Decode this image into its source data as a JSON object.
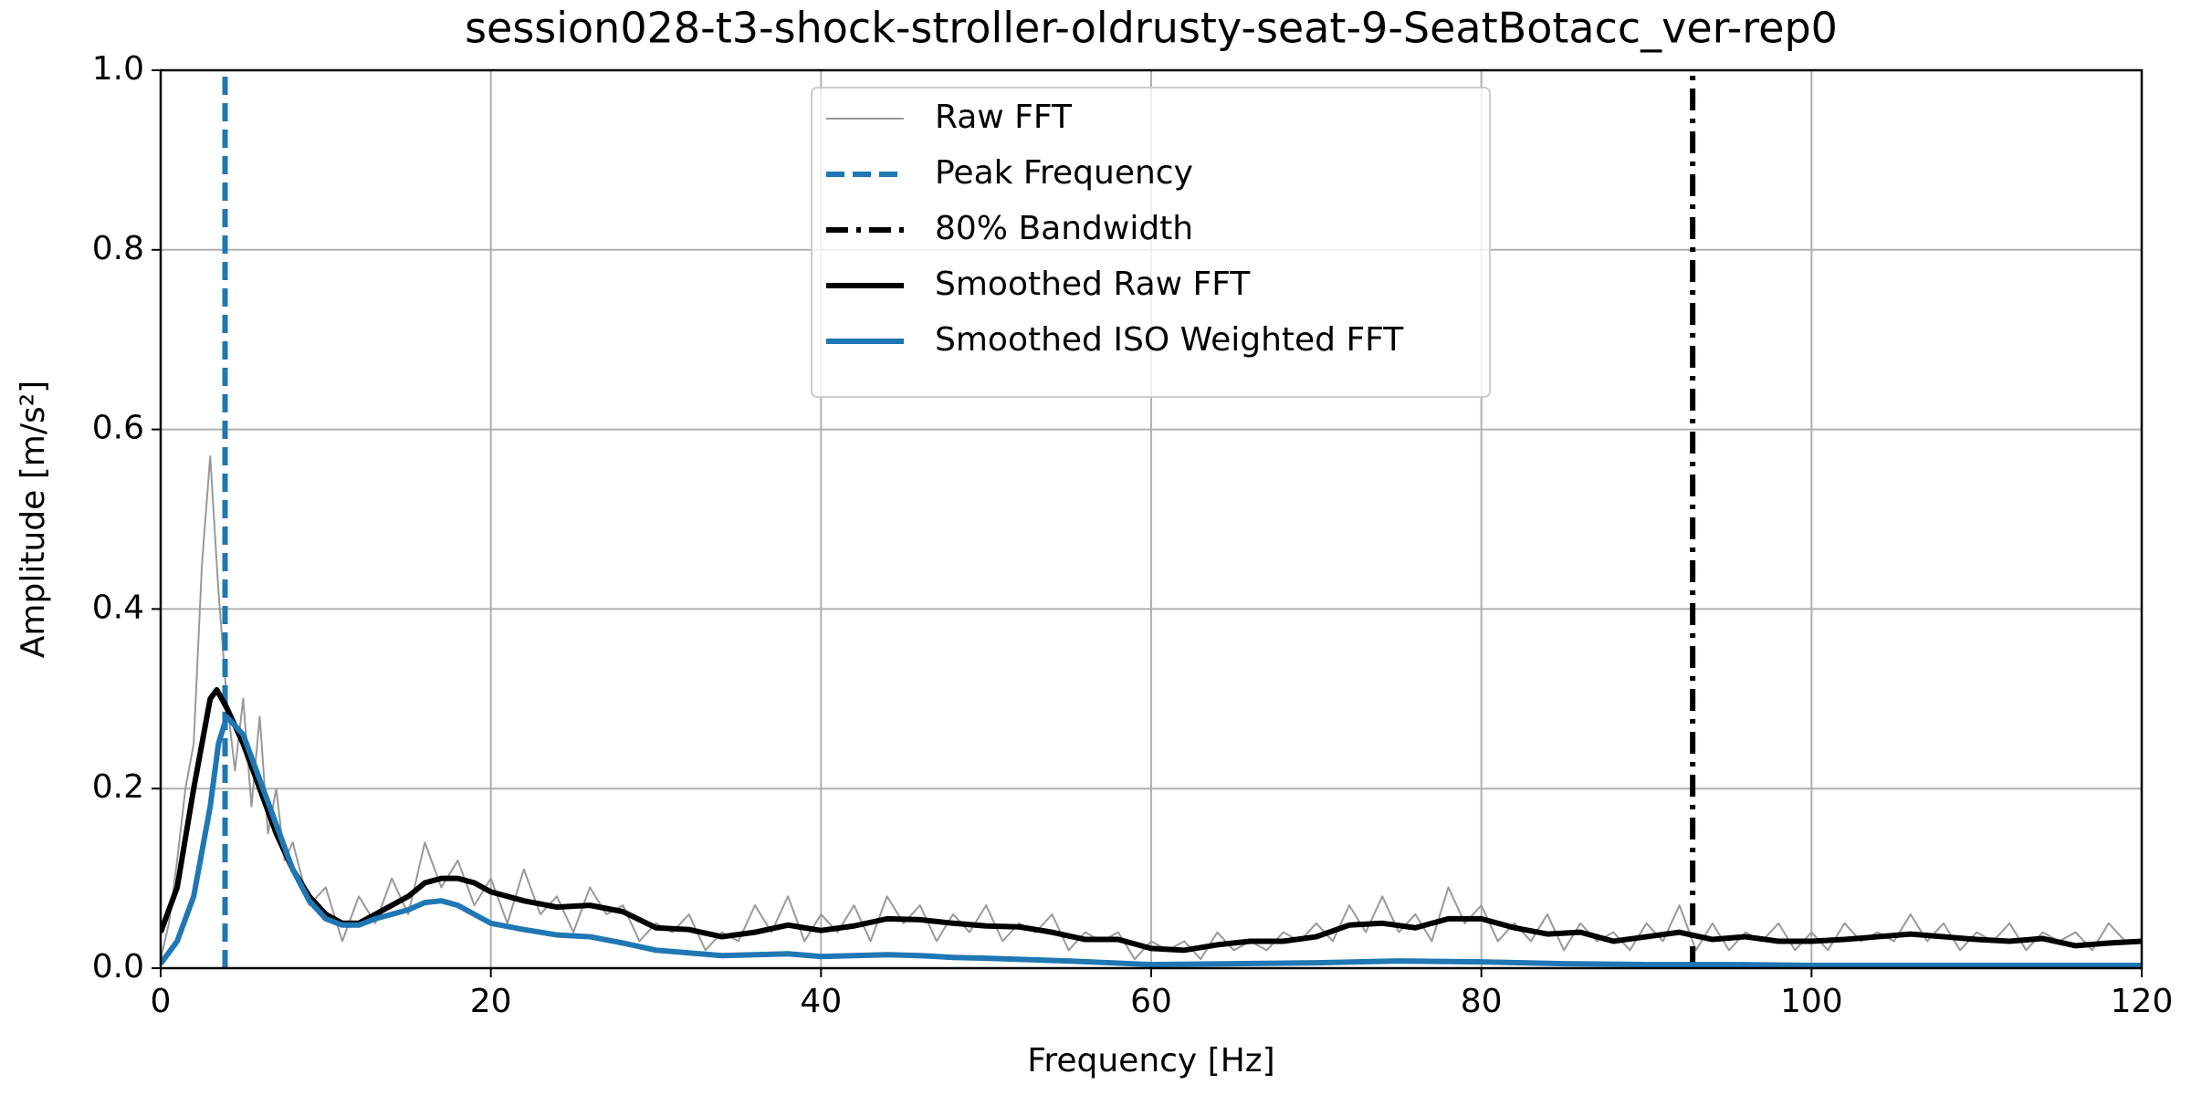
{
  "chart_data": {
    "type": "line",
    "title": "session028-t3-shock-stroller-oldrusty-seat-9-SeatBotacc_ver-rep0",
    "xlabel": "Frequency [Hz]",
    "ylabel": "Amplitude [m/s²]",
    "xlim": [
      0,
      120
    ],
    "xticks": [
      0,
      20,
      40,
      60,
      80,
      100,
      120
    ],
    "ylim": [
      0,
      1
    ],
    "yticks": [
      {
        "value": 0,
        "label": "0.0"
      },
      0.2,
      0.4,
      0.6,
      0.8,
      {
        "value": 1,
        "label": "1.0"
      }
    ],
    "grid": true,
    "legend": "upper center",
    "series": [
      {
        "name": "Raw FFT",
        "kind": "line",
        "color": "#999999",
        "width": 1,
        "x": [
          0,
          0.5,
          1,
          1.5,
          2,
          2.5,
          3,
          3.5,
          4,
          4.5,
          5,
          5.5,
          6,
          6.5,
          7,
          7.5,
          8,
          9,
          10,
          11,
          12,
          13,
          14,
          15,
          16,
          17,
          18,
          19,
          20,
          21,
          22,
          23,
          24,
          25,
          26,
          27,
          28,
          29,
          30,
          31,
          32,
          33,
          34,
          35,
          36,
          37,
          38,
          39,
          40,
          41,
          42,
          43,
          44,
          45,
          46,
          47,
          48,
          49,
          50,
          51,
          52,
          53,
          54,
          55,
          56,
          57,
          58,
          59,
          60,
          61,
          62,
          63,
          64,
          65,
          66,
          67,
          68,
          69,
          70,
          71,
          72,
          73,
          74,
          75,
          76,
          77,
          78,
          79,
          80,
          81,
          82,
          83,
          84,
          85,
          86,
          87,
          88,
          89,
          90,
          91,
          92,
          93,
          94,
          95,
          96,
          97,
          98,
          99,
          100,
          101,
          102,
          103,
          104,
          105,
          106,
          107,
          108,
          109,
          110,
          111,
          112,
          113,
          114,
          115,
          116,
          117,
          118,
          119,
          120
        ],
        "values": [
          0.01,
          0.05,
          0.12,
          0.2,
          0.25,
          0.45,
          0.57,
          0.42,
          0.3,
          0.22,
          0.3,
          0.18,
          0.28,
          0.15,
          0.2,
          0.12,
          0.14,
          0.07,
          0.09,
          0.03,
          0.08,
          0.05,
          0.1,
          0.06,
          0.14,
          0.09,
          0.12,
          0.07,
          0.1,
          0.05,
          0.11,
          0.06,
          0.08,
          0.04,
          0.09,
          0.06,
          0.07,
          0.03,
          0.05,
          0.04,
          0.06,
          0.02,
          0.04,
          0.03,
          0.07,
          0.04,
          0.08,
          0.03,
          0.06,
          0.04,
          0.07,
          0.03,
          0.08,
          0.05,
          0.07,
          0.03,
          0.06,
          0.04,
          0.07,
          0.03,
          0.05,
          0.04,
          0.06,
          0.02,
          0.04,
          0.03,
          0.04,
          0.01,
          0.03,
          0.02,
          0.03,
          0.01,
          0.04,
          0.02,
          0.03,
          0.02,
          0.04,
          0.03,
          0.05,
          0.03,
          0.07,
          0.04,
          0.08,
          0.04,
          0.06,
          0.03,
          0.09,
          0.05,
          0.07,
          0.03,
          0.05,
          0.03,
          0.06,
          0.02,
          0.05,
          0.03,
          0.04,
          0.02,
          0.05,
          0.03,
          0.07,
          0.02,
          0.05,
          0.02,
          0.04,
          0.03,
          0.05,
          0.02,
          0.04,
          0.02,
          0.05,
          0.03,
          0.04,
          0.03,
          0.06,
          0.03,
          0.05,
          0.02,
          0.04,
          0.03,
          0.05,
          0.02,
          0.04,
          0.03,
          0.04,
          0.02,
          0.05,
          0.03,
          0.03
        ]
      },
      {
        "name": "Peak Frequency",
        "kind": "vline",
        "color": "#1f77b4",
        "dash": "dashed",
        "width": 3,
        "x": 3.9
      },
      {
        "name": "80% Bandwidth",
        "kind": "vline",
        "color": "#000000",
        "dash": "dashdot",
        "width": 3,
        "x": 92.8
      },
      {
        "name": "Smoothed Raw FFT",
        "kind": "line",
        "color": "#000000",
        "width": 3,
        "x": [
          0,
          1,
          2,
          3,
          3.4,
          4,
          5,
          6,
          7,
          8,
          9,
          10,
          11,
          12,
          13,
          14,
          15,
          16,
          17,
          18,
          19,
          20,
          22,
          24,
          26,
          28,
          30,
          32,
          34,
          36,
          38,
          40,
          42,
          44,
          46,
          48,
          50,
          52,
          54,
          56,
          58,
          60,
          62,
          64,
          66,
          68,
          70,
          72,
          74,
          76,
          78,
          80,
          82,
          84,
          86,
          88,
          90,
          92,
          94,
          96,
          98,
          100,
          102,
          104,
          106,
          108,
          110,
          112,
          114,
          116,
          118,
          120
        ],
        "values": [
          0.04,
          0.09,
          0.2,
          0.3,
          0.31,
          0.29,
          0.25,
          0.2,
          0.15,
          0.11,
          0.08,
          0.06,
          0.05,
          0.05,
          0.06,
          0.07,
          0.08,
          0.095,
          0.1,
          0.1,
          0.095,
          0.085,
          0.075,
          0.068,
          0.07,
          0.063,
          0.045,
          0.043,
          0.035,
          0.04,
          0.048,
          0.042,
          0.047,
          0.055,
          0.054,
          0.05,
          0.047,
          0.046,
          0.04,
          0.032,
          0.032,
          0.022,
          0.02,
          0.026,
          0.03,
          0.03,
          0.035,
          0.048,
          0.05,
          0.045,
          0.055,
          0.055,
          0.045,
          0.038,
          0.04,
          0.03,
          0.035,
          0.04,
          0.032,
          0.035,
          0.03,
          0.03,
          0.032,
          0.035,
          0.038,
          0.035,
          0.032,
          0.03,
          0.033,
          0.025,
          0.028,
          0.03
        ]
      },
      {
        "name": "Smoothed ISO Weighted FFT",
        "kind": "line",
        "color": "#1f77b4",
        "width": 3,
        "x": [
          0,
          1,
          2,
          3,
          3.5,
          4,
          5,
          6,
          7,
          8,
          9,
          10,
          11,
          12,
          13,
          14,
          15,
          16,
          17,
          18,
          19,
          20,
          22,
          24,
          26,
          28,
          30,
          32,
          34,
          36,
          38,
          40,
          42,
          44,
          46,
          48,
          50,
          55,
          60,
          65,
          70,
          75,
          80,
          85,
          90,
          95,
          100,
          110,
          120
        ],
        "values": [
          0.005,
          0.03,
          0.08,
          0.18,
          0.25,
          0.28,
          0.26,
          0.21,
          0.16,
          0.11,
          0.075,
          0.055,
          0.048,
          0.048,
          0.055,
          0.06,
          0.065,
          0.073,
          0.075,
          0.07,
          0.06,
          0.05,
          0.043,
          0.037,
          0.035,
          0.028,
          0.02,
          0.017,
          0.014,
          0.015,
          0.016,
          0.013,
          0.014,
          0.015,
          0.014,
          0.012,
          0.011,
          0.008,
          0.004,
          0.005,
          0.006,
          0.008,
          0.007,
          0.005,
          0.004,
          0.004,
          0.003,
          0.003,
          0.003
        ]
      }
    ]
  }
}
